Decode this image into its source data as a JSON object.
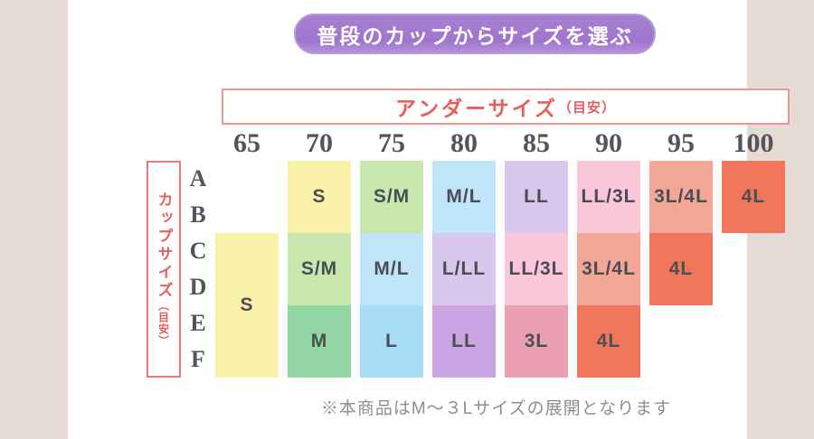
{
  "page": {
    "bg_color": "#e6dad5",
    "panel_color": "#ffffff"
  },
  "header_badge": {
    "label": "普段のカップからサイズを選ぶ",
    "bg_color": "#a076cd",
    "border_color": "#b999dd",
    "text_color": "#ffffff"
  },
  "axes": {
    "under_title": "アンダーサイズ",
    "under_note": "（目安）",
    "cup_title": "カップサイズ",
    "cup_note": "（目安）",
    "accent_text_color": "#e85d5d",
    "accent_border_color": "#ea9797"
  },
  "table": {
    "columns": [
      "65",
      "70",
      "75",
      "80",
      "85",
      "90",
      "95",
      "100"
    ],
    "rows": [
      "A",
      "B",
      "C",
      "D",
      "E",
      "F"
    ],
    "palette": {
      "yellow": "#faf1a9",
      "green_light": "#c8e7ae",
      "green": "#92d6a3",
      "blue_light": "#c0e4f8",
      "blue": "#a9ddf5",
      "purple_light": "#d9c8ee",
      "purple": "#c9a6e3",
      "pink_light": "#f9c7d9",
      "pink": "#ea9fb4",
      "salmon": "#f3a794",
      "coral": "#f2765b"
    },
    "cells": [
      {
        "col": "65",
        "cups": "C-F",
        "label": "S"
      },
      {
        "col": "70",
        "cups": "A-B",
        "label": "S"
      },
      {
        "col": "70",
        "cups": "C-D",
        "label": "S/M"
      },
      {
        "col": "70",
        "cups": "E-F",
        "label": "M"
      },
      {
        "col": "75",
        "cups": "A-B",
        "label": "S/M"
      },
      {
        "col": "75",
        "cups": "C-D",
        "label": "M/L"
      },
      {
        "col": "75",
        "cups": "E-F",
        "label": "L"
      },
      {
        "col": "80",
        "cups": "A-B",
        "label": "M/L"
      },
      {
        "col": "80",
        "cups": "C-D",
        "label": "L/LL"
      },
      {
        "col": "80",
        "cups": "E-F",
        "label": "LL"
      },
      {
        "col": "85",
        "cups": "A-B",
        "label": "LL"
      },
      {
        "col": "85",
        "cups": "C-D",
        "label": "LL/3L"
      },
      {
        "col": "85",
        "cups": "E-F",
        "label": "3L"
      },
      {
        "col": "90",
        "cups": "A-B",
        "label": "LL/3L"
      },
      {
        "col": "90",
        "cups": "C-D",
        "label": "3L/4L"
      },
      {
        "col": "90",
        "cups": "E-F",
        "label": "4L"
      },
      {
        "col": "95",
        "cups": "A-B",
        "label": "3L/4L"
      },
      {
        "col": "95",
        "cups": "C-D",
        "label": "4L"
      },
      {
        "col": "100",
        "cups": "A-B",
        "label": "4L"
      }
    ]
  },
  "footer": {
    "note": "※本商品はM〜３Lサイズの展開となります",
    "text_color": "#8e8e8e"
  },
  "chart_data": {
    "type": "table",
    "title": "普段のカップからサイズを選ぶ",
    "xlabel": "アンダーサイズ（目安）",
    "ylabel": "カップサイズ（目安）",
    "columns": [
      "65",
      "70",
      "75",
      "80",
      "85",
      "90",
      "95",
      "100"
    ],
    "matrix": [
      {
        "cup": "A",
        "sizes": [
          "",
          "S",
          "S/M",
          "M/L",
          "LL",
          "LL/3L",
          "3L/4L",
          "4L"
        ]
      },
      {
        "cup": "B",
        "sizes": [
          "",
          "S",
          "S/M",
          "M/L",
          "LL",
          "LL/3L",
          "3L/4L",
          "4L"
        ]
      },
      {
        "cup": "C",
        "sizes": [
          "S",
          "S/M",
          "M/L",
          "L/LL",
          "LL/3L",
          "3L/4L",
          "4L",
          ""
        ]
      },
      {
        "cup": "D",
        "sizes": [
          "S",
          "S/M",
          "M/L",
          "L/LL",
          "LL/3L",
          "3L/4L",
          "4L",
          ""
        ]
      },
      {
        "cup": "E",
        "sizes": [
          "S",
          "M",
          "L",
          "LL",
          "3L",
          "4L",
          "",
          ""
        ]
      },
      {
        "cup": "F",
        "sizes": [
          "S",
          "M",
          "L",
          "LL",
          "3L",
          "4L",
          "",
          ""
        ]
      }
    ],
    "footnote": "※本商品はM〜３Lサイズの展開となります"
  }
}
